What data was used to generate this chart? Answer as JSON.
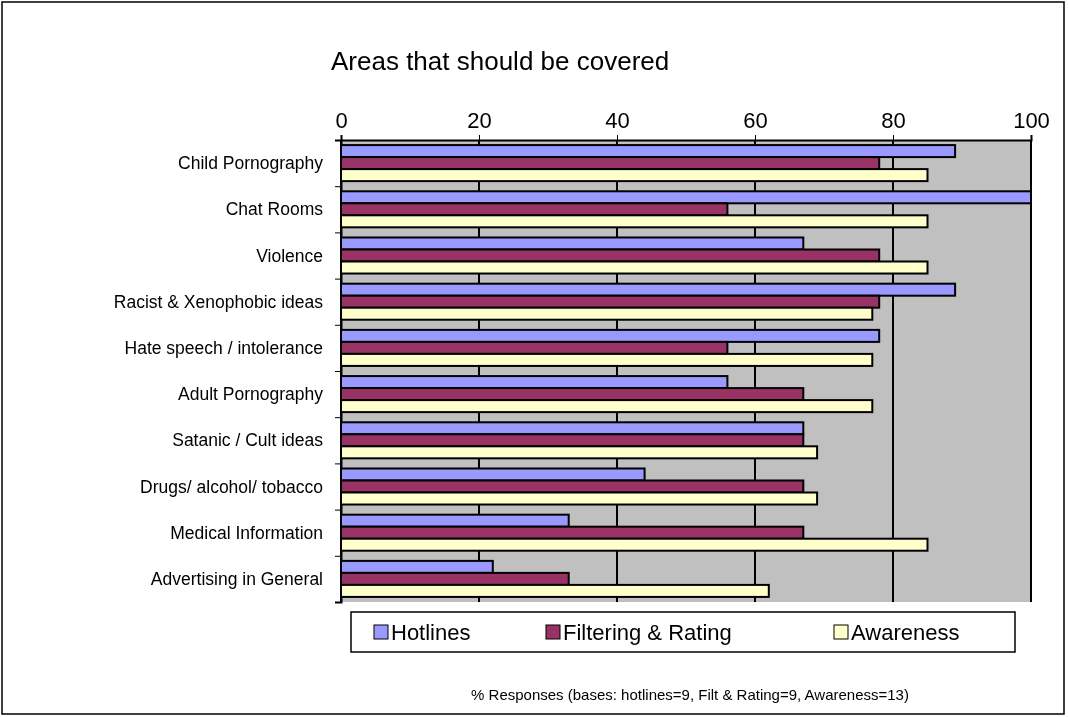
{
  "chart_data": {
    "type": "bar",
    "orientation": "horizontal",
    "title": "Areas that should be covered",
    "categories": [
      "Child Pornography",
      "Chat Rooms",
      "Violence",
      "Racist & Xenophobic ideas",
      "Hate speech / intolerance",
      "Adult Pornography",
      "Satanic / Cult ideas",
      "Drugs/ alcohol/ tobacco",
      "Medical Information",
      "Advertising in General"
    ],
    "series": [
      {
        "name": "Hotlines",
        "color": "#9999ff",
        "values": [
          89,
          100,
          67,
          89,
          78,
          56,
          67,
          44,
          33,
          22
        ]
      },
      {
        "name": "Filtering & Rating",
        "color": "#993366",
        "values": [
          78,
          56,
          78,
          78,
          56,
          67,
          67,
          67,
          67,
          33
        ]
      },
      {
        "name": "Awareness",
        "color": "#ffffcc",
        "values": [
          85,
          85,
          85,
          77,
          77,
          77,
          69,
          69,
          85,
          62
        ]
      }
    ],
    "xlim": [
      0,
      100
    ],
    "xticks": [
      0,
      20,
      40,
      60,
      80,
      100
    ],
    "grid": "x",
    "legend": "bottom",
    "annotations": [
      "% Responses (bases: hotlines=9, Filt & Rating=9, Awareness=13)"
    ]
  }
}
